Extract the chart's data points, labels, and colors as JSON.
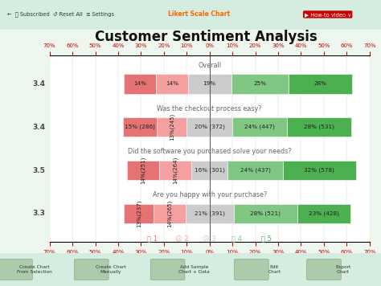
{
  "title": "Customer Sentiment Analysis",
  "title_fontsize": 12,
  "background_color": "#eef7ee",
  "plot_bg_color": "#ffffff",
  "header_color": "#d4ede0",
  "rows": [
    {
      "label": "Overall",
      "score": "3.4",
      "values": [
        -14,
        -14,
        19,
        25,
        28
      ],
      "texts": [
        "14%",
        "14%",
        "19%",
        "25%",
        "28%"
      ],
      "rotated": [
        false,
        false,
        false,
        false,
        false
      ]
    },
    {
      "label": "Was the checkout process easy?",
      "score": "3.4",
      "values": [
        -15,
        -13,
        20,
        24,
        28
      ],
      "texts": [
        "15% (286)",
        "13%(245)",
        "20% (372)",
        "24% (447)",
        "28% (531)"
      ],
      "rotated": [
        false,
        true,
        false,
        false,
        false
      ]
    },
    {
      "label": "Did the software you purchased solve your needs?",
      "score": "3.5",
      "values": [
        -14,
        -14,
        16,
        24,
        32
      ],
      "texts": [
        "14%(251)",
        "14%(264)",
        "16% (301)",
        "24% (437)",
        "32% (578)"
      ],
      "rotated": [
        true,
        true,
        false,
        false,
        false
      ]
    },
    {
      "label": "Are you happy with your purchase?",
      "score": "3.3",
      "values": [
        -13,
        -14,
        21,
        28,
        23
      ],
      "texts": [
        "13%(237)",
        "14%(265)",
        "21% (391)",
        "28% (521)",
        "23% (428)"
      ],
      "rotated": [
        true,
        true,
        false,
        false,
        false
      ]
    }
  ],
  "colors": [
    "#e57373",
    "#f5a0a0",
    "#cccccc",
    "#81c784",
    "#4caf50"
  ],
  "xlim": [
    -70,
    70
  ],
  "xticks": [
    -70,
    -60,
    -50,
    -40,
    -30,
    -20,
    -10,
    0,
    10,
    20,
    30,
    40,
    50,
    60,
    70
  ],
  "xtick_labels": [
    "70%",
    "60%",
    "50%",
    "40%",
    "30%",
    "20%",
    "10%",
    "0%",
    "10%",
    "20%",
    "30%",
    "40%",
    "50%",
    "60%",
    "70%"
  ],
  "xtick_color": "#cc0000",
  "grid_color": "#bbbbbb",
  "bar_height": 0.45,
  "score_color": "#444444",
  "label_color": "#666666"
}
